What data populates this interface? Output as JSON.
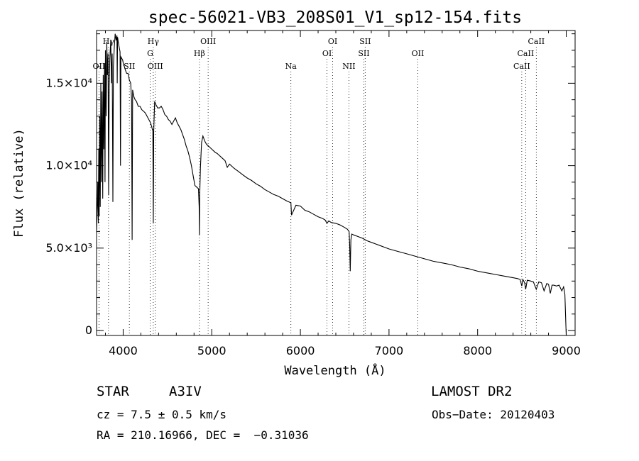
{
  "chart_data": {
    "type": "line",
    "title": "spec-56021-VB3_208S01_V1_sp12-154.fits",
    "xlabel": "Wavelength (Å)",
    "ylabel": "Flux (relative)",
    "xlim": [
      3700,
      9100
    ],
    "ylim": [
      -300,
      18200
    ],
    "xticks": [
      {
        "value": 4000,
        "label": "4000"
      },
      {
        "value": 5000,
        "label": "5000"
      },
      {
        "value": 6000,
        "label": "6000"
      },
      {
        "value": 7000,
        "label": "7000"
      },
      {
        "value": 8000,
        "label": "8000"
      },
      {
        "value": 9000,
        "label": "9000"
      }
    ],
    "yticks": [
      {
        "value": 0,
        "label": "0"
      },
      {
        "value": 5000,
        "label": "5.0×10³"
      },
      {
        "value": 10000,
        "label": "1.0×10⁴"
      },
      {
        "value": 15000,
        "label": "1.5×10⁴"
      }
    ],
    "lines": [
      {
        "name": "OII",
        "wave": 3727,
        "row": 3
      },
      {
        "name": "Hγ",
        "wave": 3835,
        "row": 1
      },
      {
        "name": "SII",
        "wave": 4070,
        "row": 3
      },
      {
        "name": "Hγ",
        "wave": 4340,
        "row": 1
      },
      {
        "name": "G",
        "wave": 4305,
        "row": 2
      },
      {
        "name": "OIII",
        "wave": 4363,
        "row": 3
      },
      {
        "name": "OIII",
        "wave": 4959,
        "row": 1
      },
      {
        "name": "Hβ",
        "wave": 4861,
        "row": 2
      },
      {
        "name": "Na",
        "wave": 5893,
        "row": 3
      },
      {
        "name": "OI",
        "wave": 6364,
        "row": 1
      },
      {
        "name": "OI",
        "wave": 6300,
        "row": 2
      },
      {
        "name": "NII",
        "wave": 6548,
        "row": 3
      },
      {
        "name": "SII",
        "wave": 6731,
        "row": 1
      },
      {
        "name": "SII",
        "wave": 6716,
        "row": 2
      },
      {
        "name": "OII",
        "wave": 7325,
        "row": 2
      },
      {
        "name": "CaII",
        "wave": 8662,
        "row": 1
      },
      {
        "name": "CaII",
        "wave": 8542,
        "row": 2
      },
      {
        "name": "CaII",
        "wave": 8498,
        "row": 3
      }
    ],
    "series": [
      {
        "name": "flux",
        "x": [
          3700,
          3708,
          3714,
          3720,
          3725,
          3730,
          3736,
          3742,
          3748,
          3755,
          3762,
          3770,
          3775,
          3782,
          3790,
          3795,
          3800,
          3808,
          3815,
          3822,
          3830,
          3836,
          3843,
          3850,
          3860,
          3868,
          3876,
          3884,
          3890,
          3900,
          3910,
          3920,
          3930,
          3933,
          3937,
          3945,
          3955,
          3965,
          3970,
          3975,
          3985,
          3995,
          4005,
          4015,
          4025,
          4040,
          4055,
          4070,
          4085,
          4095,
          4101,
          4107,
          4120,
          4135,
          4150,
          4170,
          4190,
          4210,
          4230,
          4250,
          4270,
          4290,
          4310,
          4325,
          4335,
          4340,
          4345,
          4355,
          4370,
          4390,
          4410,
          4430,
          4450,
          4470,
          4490,
          4510,
          4530,
          4550,
          4570,
          4590,
          4610,
          4630,
          4650,
          4670,
          4690,
          4710,
          4730,
          4750,
          4770,
          4790,
          4810,
          4830,
          4850,
          4858,
          4861,
          4864,
          4872,
          4885,
          4900,
          4920,
          4940,
          4960,
          4980,
          5000,
          5020,
          5040,
          5060,
          5080,
          5100,
          5150,
          5175,
          5200,
          5250,
          5300,
          5350,
          5400,
          5450,
          5500,
          5550,
          5600,
          5650,
          5700,
          5750,
          5800,
          5850,
          5893,
          5900,
          5950,
          6000,
          6050,
          6100,
          6150,
          6200,
          6250,
          6280,
          6300,
          6320,
          6350,
          6400,
          6450,
          6500,
          6530,
          6550,
          6556,
          6563,
          6570,
          6580,
          6600,
          6650,
          6700,
          6750,
          6800,
          6850,
          6900,
          6950,
          7000,
          7100,
          7200,
          7300,
          7400,
          7500,
          7600,
          7700,
          7800,
          7900,
          8000,
          8100,
          8200,
          8300,
          8400,
          8450,
          8480,
          8498,
          8510,
          8530,
          8542,
          8560,
          8600,
          8630,
          8662,
          8690,
          8720,
          8750,
          8780,
          8800,
          8820,
          8840,
          8860,
          8890,
          8920,
          8950,
          8970,
          8985,
          9000
        ],
        "y": [
          6000,
          7500,
          9000,
          6500,
          11000,
          7000,
          13000,
          7500,
          15000,
          9000,
          14500,
          8000,
          15500,
          11000,
          16200,
          9000,
          17000,
          13000,
          17500,
          15500,
          16800,
          8200,
          14800,
          16500,
          17600,
          15000,
          16800,
          7800,
          16000,
          17200,
          18000,
          17600,
          17900,
          15000,
          17800,
          17500,
          17200,
          16900,
          10000,
          16600,
          16500,
          16400,
          16100,
          16000,
          15800,
          15600,
          15600,
          15200,
          15000,
          14000,
          5500,
          14600,
          14200,
          14000,
          13900,
          13600,
          13600,
          13400,
          13300,
          13200,
          13000,
          12800,
          12600,
          12300,
          12100,
          6500,
          12100,
          13900,
          13700,
          13500,
          13500,
          13600,
          13400,
          13100,
          13000,
          12800,
          12700,
          12500,
          12700,
          12900,
          12600,
          12400,
          12200,
          11900,
          11600,
          11200,
          10900,
          10500,
          10000,
          9400,
          8800,
          8700,
          8600,
          7500,
          5800,
          8200,
          9900,
          11400,
          11800,
          11500,
          11300,
          11200,
          11100,
          11000,
          10900,
          10800,
          10750,
          10650,
          10550,
          10300,
          9900,
          10100,
          9850,
          9650,
          9450,
          9250,
          9100,
          8900,
          8750,
          8550,
          8400,
          8250,
          8150,
          8000,
          7850,
          7750,
          7000,
          7600,
          7550,
          7300,
          7200,
          7050,
          6900,
          6800,
          6700,
          6500,
          6650,
          6550,
          6500,
          6400,
          6250,
          6150,
          6000,
          5200,
          3600,
          5500,
          5850,
          5800,
          5700,
          5600,
          5450,
          5350,
          5250,
          5150,
          5050,
          4950,
          4800,
          4650,
          4500,
          4350,
          4200,
          4100,
          4000,
          3850,
          3750,
          3600,
          3500,
          3400,
          3300,
          3200,
          3150,
          3100,
          2700,
          3100,
          2900,
          2500,
          3050,
          3000,
          2950,
          2500,
          2950,
          2900,
          2400,
          2850,
          2800,
          2250,
          2750,
          2750,
          2700,
          2750,
          2400,
          2650,
          2200,
          -300
        ]
      }
    ]
  },
  "footer": {
    "object_type": "STAR",
    "subclass": "A3IV",
    "survey": "LAMOST DR2",
    "cz": "cz = 7.5 ± 0.5 km/s",
    "obs_date": "Obs−Date: 20120403",
    "coords": "RA = 210.16966, DEC =  −0.31036"
  }
}
